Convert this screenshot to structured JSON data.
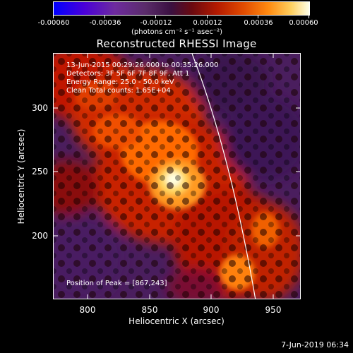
{
  "colorbar": {
    "labels": [
      "-0.00060",
      "-0.00036",
      "-0.00012",
      "0.00012",
      "0.00036",
      "0.00060"
    ],
    "units": "(photons cm⁻² s⁻¹ asec⁻²)"
  },
  "title": "Reconstructed RHESSI Image",
  "info": {
    "time": "13-Jun-2015 00:29:26.000 to 00:35:26.000",
    "detectors": "Detectors: 3F 5F 6F 7F 8F 9F, Att 1",
    "energy": "Energy Range: 25.0 - 50.0 keV",
    "clean": "Clean     Total counts: 1.65E+04"
  },
  "peak": "Position of Peak = [867,243]",
  "axes": {
    "xlabel": "Heliocentric X (arcsec)",
    "ylabel": "Heliocentric Y (arcsec)",
    "xticks": [
      "800",
      "850",
      "900",
      "950"
    ],
    "yticks": [
      "300",
      "250",
      "200"
    ]
  },
  "timestamp": "7-Jun-2019 06:34",
  "colors": {
    "background": "#000000",
    "peak": "#ffffe0",
    "limb": "#ffffff"
  }
}
